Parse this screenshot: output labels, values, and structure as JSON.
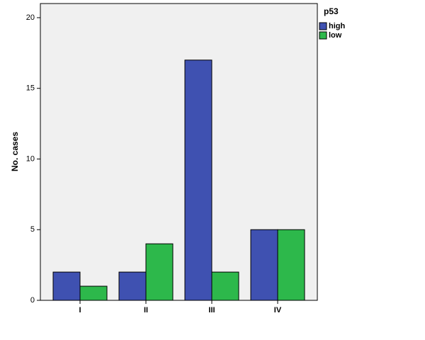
{
  "chart_data": {
    "type": "bar",
    "categories": [
      "I",
      "II",
      "III",
      "IV"
    ],
    "series": [
      {
        "name": "high",
        "color": "#3f51b1",
        "values": [
          2,
          2,
          17,
          5
        ]
      },
      {
        "name": "low",
        "color": "#2db84b",
        "values": [
          1,
          4,
          2,
          5
        ]
      }
    ],
    "y_label": "No. cases",
    "legend_title": "p53",
    "legend": "right",
    "ylim": [
      0,
      21
    ],
    "yticks": [
      0,
      5,
      10,
      15,
      20
    ],
    "grid": false
  }
}
